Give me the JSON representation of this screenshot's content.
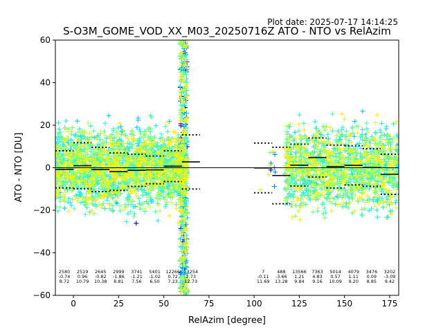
{
  "plot_date": "Plot date: 2025-07-17 14:14:25",
  "chart_data": {
    "type": "scatter",
    "title": "S-O3M_GOME_VOD_XX_M03_20250716Z ATO - NTO vs RelAzim",
    "xlabel": "RelAzim [degree]",
    "ylabel": "ATO - NTO [DU]",
    "xlim": [
      -10,
      180
    ],
    "ylim": [
      -60,
      60
    ],
    "x_ticks": [
      0,
      25,
      50,
      75,
      100,
      125,
      150,
      175
    ],
    "y_ticks": [
      -60,
      -40,
      -20,
      0,
      20,
      40,
      60
    ],
    "grid": false,
    "zero_line": 0,
    "marker": "+",
    "color_scale": [
      "#0000cc",
      "#0088ff",
      "#00ccff",
      "#22eeee",
      "#44ffaa",
      "#88ff66",
      "#ccff33",
      "#ffee00"
    ],
    "bins": [
      {
        "x": -5,
        "count": "2580",
        "mean": "-0.74",
        "std": "8.72"
      },
      {
        "x": 5,
        "count": "2519",
        "mean": "0.96",
        "std": "10.79"
      },
      {
        "x": 15,
        "count": "2645",
        "mean": "-0.82",
        "std": "10.38"
      },
      {
        "x": 25,
        "count": "2999",
        "mean": "-1.86",
        "std": "8.81"
      },
      {
        "x": 35,
        "count": "3741",
        "mean": "-1.21",
        "std": "7.56"
      },
      {
        "x": 45,
        "count": "5401",
        "mean": "-1.02",
        "std": "6.50"
      },
      {
        "x": 55,
        "count": "12266",
        "mean": "0.72",
        "std": "7.23"
      },
      {
        "x": 65,
        "count": "13254",
        "mean": "2.73",
        "std": "12.73"
      },
      {
        "x": 105,
        "count": "7",
        "mean": "-0.11",
        "std": "11.69"
      },
      {
        "x": 115,
        "count": "488",
        "mean": "-3.66",
        "std": "13.28"
      },
      {
        "x": 125,
        "count": "13566",
        "mean": "1.21",
        "std": "9.84"
      },
      {
        "x": 135,
        "count": "7363",
        "mean": "4.83",
        "std": "9.16"
      },
      {
        "x": 145,
        "count": "5014",
        "mean": "0.57",
        "std": "10.09"
      },
      {
        "x": 155,
        "count": "4079",
        "mean": "1.11",
        "std": "9.20"
      },
      {
        "x": 165,
        "count": "3476",
        "mean": "0.09",
        "std": "8.85"
      },
      {
        "x": 175,
        "count": "3202",
        "mean": "-3.09",
        "std": "9.42"
      }
    ],
    "point_clouds": [
      {
        "x_range": [
          -10,
          63
        ],
        "y_range": [
          -35,
          40
        ]
      },
      {
        "x_range": [
          59,
          63
        ],
        "y_range": [
          -60,
          60
        ]
      },
      {
        "x_range": [
          100,
          111
        ],
        "y_range": [
          -17,
          14
        ]
      },
      {
        "x_range": [
          117,
          180
        ],
        "y_range": [
          -55,
          40
        ]
      }
    ]
  }
}
